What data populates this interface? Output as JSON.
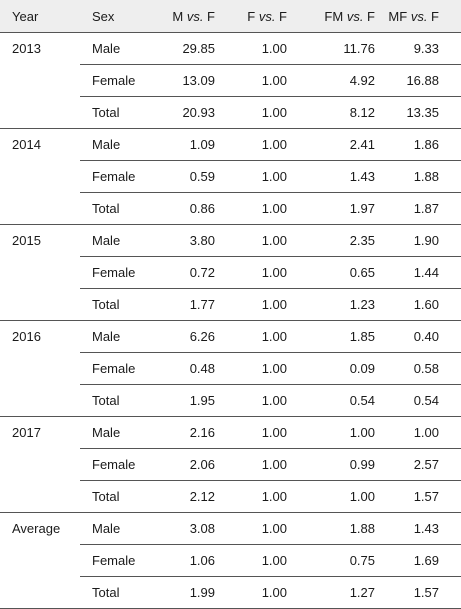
{
  "header": {
    "year": "Year",
    "sex": "Sex",
    "col_m": {
      "pre": "M ",
      "vs": "vs.",
      "post": " F"
    },
    "col_f": {
      "pre": "F ",
      "vs": "vs.",
      "post": " F"
    },
    "col_fm": {
      "pre": "FM ",
      "vs": "vs.",
      "post": " F"
    },
    "col_mf": {
      "pre": "MF ",
      "vs": "vs.",
      "post": " F"
    }
  },
  "groups": [
    {
      "year": "2013",
      "rows": [
        {
          "sex": "Male",
          "m": "29.85",
          "f": "1.00",
          "fm": "11.76",
          "mf": "9.33"
        },
        {
          "sex": "Female",
          "m": "13.09",
          "f": "1.00",
          "fm": "4.92",
          "mf": "16.88"
        },
        {
          "sex": "Total",
          "m": "20.93",
          "f": "1.00",
          "fm": "8.12",
          "mf": "13.35"
        }
      ]
    },
    {
      "year": "2014",
      "rows": [
        {
          "sex": "Male",
          "m": "1.09",
          "f": "1.00",
          "fm": "2.41",
          "mf": "1.86"
        },
        {
          "sex": "Female",
          "m": "0.59",
          "f": "1.00",
          "fm": "1.43",
          "mf": "1.88"
        },
        {
          "sex": "Total",
          "m": "0.86",
          "f": "1.00",
          "fm": "1.97",
          "mf": "1.87"
        }
      ]
    },
    {
      "year": "2015",
      "rows": [
        {
          "sex": "Male",
          "m": "3.80",
          "f": "1.00",
          "fm": "2.35",
          "mf": "1.90"
        },
        {
          "sex": "Female",
          "m": "0.72",
          "f": "1.00",
          "fm": "0.65",
          "mf": "1.44"
        },
        {
          "sex": "Total",
          "m": "1.77",
          "f": "1.00",
          "fm": "1.23",
          "mf": "1.60"
        }
      ]
    },
    {
      "year": "2016",
      "rows": [
        {
          "sex": "Male",
          "m": "6.26",
          "f": "1.00",
          "fm": "1.85",
          "mf": "0.40"
        },
        {
          "sex": "Female",
          "m": "0.48",
          "f": "1.00",
          "fm": "0.09",
          "mf": "0.58"
        },
        {
          "sex": "Total",
          "m": "1.95",
          "f": "1.00",
          "fm": "0.54",
          "mf": "0.54"
        }
      ]
    },
    {
      "year": "2017",
      "rows": [
        {
          "sex": "Male",
          "m": "2.16",
          "f": "1.00",
          "fm": "1.00",
          "mf": "1.00"
        },
        {
          "sex": "Female",
          "m": "2.06",
          "f": "1.00",
          "fm": "0.99",
          "mf": "2.57"
        },
        {
          "sex": "Total",
          "m": "2.12",
          "f": "1.00",
          "fm": "1.00",
          "mf": "1.57"
        }
      ]
    },
    {
      "year": "Average",
      "rows": [
        {
          "sex": "Male",
          "m": "3.08",
          "f": "1.00",
          "fm": "1.88",
          "mf": "1.43"
        },
        {
          "sex": "Female",
          "m": "1.06",
          "f": "1.00",
          "fm": "0.75",
          "mf": "1.69"
        },
        {
          "sex": "Total",
          "m": "1.99",
          "f": "1.00",
          "fm": "1.27",
          "mf": "1.57"
        }
      ]
    }
  ]
}
